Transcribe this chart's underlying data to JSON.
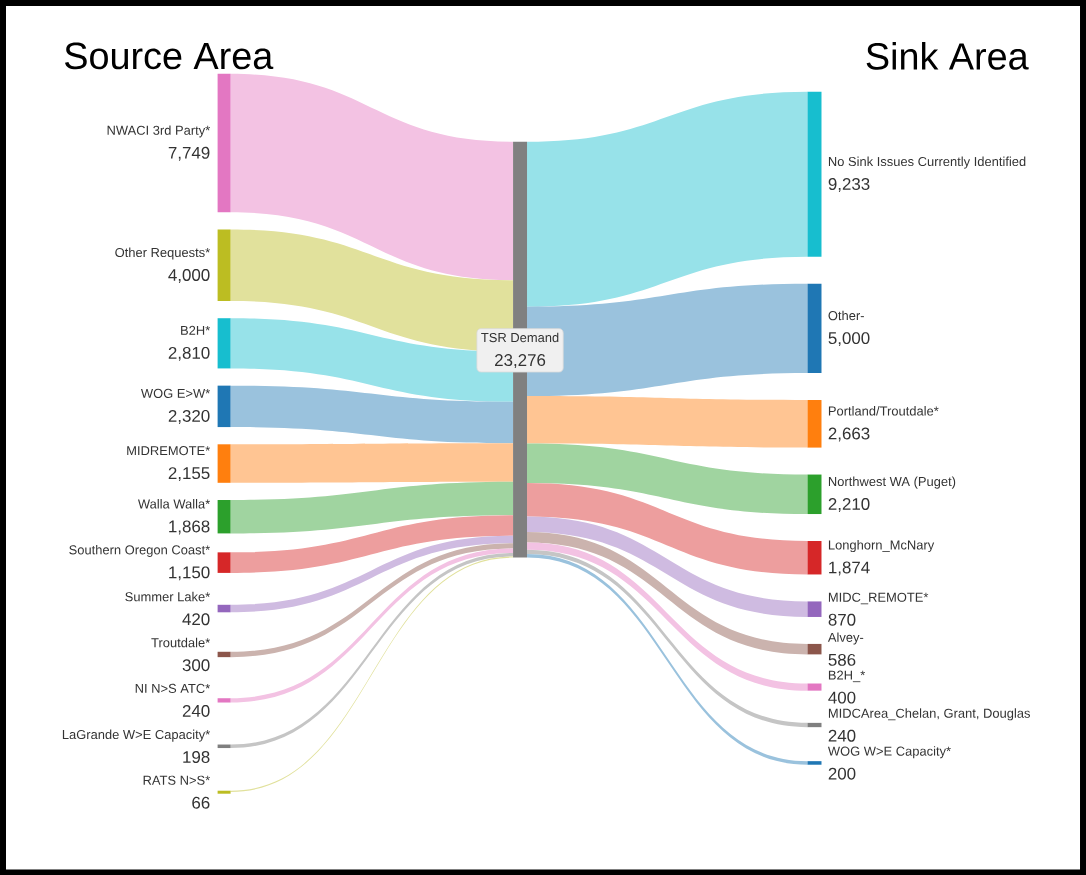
{
  "chart_data": {
    "type": "other",
    "categories": [
      "NWACI 3rd Party*",
      "Other Requests*",
      "B2H*",
      "WOG E>W*",
      "MIDREMOTE*",
      "Walla Walla*",
      "Southern Oregon Coast*",
      "Summer Lake*",
      "Troutdale*",
      "NI N>S ATC*",
      "LaGrande W>E Capacity*",
      "RATS N>S*",
      "TSR Demand",
      "No Sink Issues Currently Identified",
      "Other-",
      "Portland/Troutdale*",
      "Northwest WA (Puget)",
      "Longhorn_McNary",
      "MIDC_REMOTE*",
      "Alvey-",
      "B2H_*",
      "MIDCArea_Chelan, Grant, Douglas",
      "WOG W>E Capacity*"
    ],
    "colors": [
      "#e377c2",
      "#bcbd22",
      "#17becf",
      "#1f77b4",
      "#ff7f0e",
      "#2ca02c",
      "#d62728",
      "#9467bd",
      "#8c564b",
      "#e377c2",
      "#7f7f7f",
      "#bcbd22",
      "#808080",
      "#17becf",
      "#1f77b4",
      "#ff7f0e",
      "#2ca02c",
      "#d62728",
      "#9467bd",
      "#8c564b",
      "#e377c2",
      "#7f7f7f",
      "#1f77b4"
    ],
    "series": [
      {
        "name": "Source Area",
        "values": [
          7749,
          4000,
          2810,
          2320,
          2155,
          1868,
          1150,
          420,
          300,
          240,
          198,
          66,
          null,
          null,
          null,
          null,
          null,
          null,
          null,
          null,
          null,
          null,
          null
        ],
        "value_labels": [
          "7,749",
          "4,000",
          "2,810",
          "2,320",
          "2,155",
          "1,868",
          "1,150",
          "420",
          "300",
          "240",
          "198",
          "66",
          null,
          null,
          null,
          null,
          null,
          null,
          null,
          null,
          null,
          null,
          null
        ]
      },
      {
        "values": [
          null,
          null,
          null,
          null,
          null,
          null,
          null,
          null,
          null,
          null,
          null,
          null,
          23276,
          null,
          null,
          null,
          null,
          null,
          null,
          null,
          null,
          null,
          null
        ],
        "value_labels": [
          null,
          null,
          null,
          null,
          null,
          null,
          null,
          null,
          null,
          null,
          null,
          null,
          "23,276",
          null,
          null,
          null,
          null,
          null,
          null,
          null,
          null,
          null,
          null
        ]
      },
      {
        "name": "Sink Area",
        "values": [
          null,
          null,
          null,
          null,
          null,
          null,
          null,
          null,
          null,
          null,
          null,
          null,
          null,
          9233,
          5000,
          2663,
          2210,
          1874,
          870,
          586,
          400,
          240,
          200
        ],
        "value_labels": [
          null,
          null,
          null,
          null,
          null,
          null,
          null,
          null,
          null,
          null,
          null,
          null,
          null,
          "9,233",
          "5,000",
          "2,663",
          "2,210",
          "1,874",
          "870",
          "586",
          "400",
          "240",
          "200"
        ]
      }
    ]
  }
}
